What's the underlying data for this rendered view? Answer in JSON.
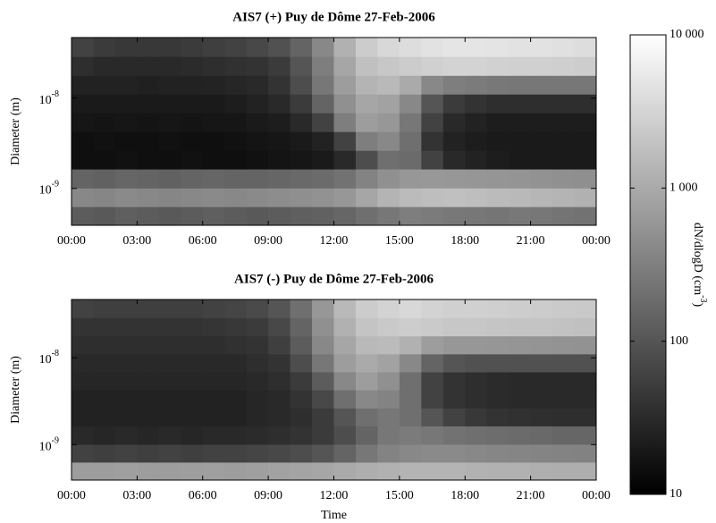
{
  "chart_data": [
    {
      "type": "heatmap",
      "title": "AIS7 (+) Puy de Dôme 27-Feb-2006",
      "ylabel": "Diameter (m)",
      "xlim": [
        0,
        24
      ],
      "xticks": [
        {
          "value": 0,
          "label": "00:00"
        },
        {
          "value": 3,
          "label": "03:00"
        },
        {
          "value": 6,
          "label": "06:00"
        },
        {
          "value": 9,
          "label": "09:00"
        },
        {
          "value": 12,
          "label": "12:00"
        },
        {
          "value": 15,
          "label": "15:00"
        },
        {
          "value": 18,
          "label": "18:00"
        },
        {
          "value": 21,
          "label": "21:00"
        },
        {
          "value": 24,
          "label": "00:00"
        }
      ],
      "ylim": [
        3.9e-10,
        4.7e-08
      ],
      "log_y": true,
      "yticks": [
        {
          "value": 1e-09,
          "label": "10",
          "exponent": "-9"
        },
        {
          "value": 1e-08,
          "label": "10",
          "exponent": "-8"
        }
      ],
      "x": [
        0,
        1,
        2,
        3,
        4,
        5,
        6,
        7,
        8,
        9,
        10,
        11,
        12,
        13,
        14,
        15,
        16,
        17,
        18,
        19,
        20,
        21,
        22,
        23
      ],
      "y_bins": [
        3.9e-10,
        6.28e-10,
        1.01e-09,
        1.64e-09,
        2.64e-09,
        4.27e-09,
        6.89e-09,
        1.11e-08,
        1.79e-08,
        2.9e-08,
        4.7e-08
      ],
      "values": [
        [
          120,
          110,
          130,
          120,
          110,
          120,
          130,
          120,
          110,
          120,
          130,
          140,
          160,
          200,
          250,
          300,
          280,
          260,
          250,
          240,
          260,
          250,
          230,
          220
        ],
        [
          400,
          380,
          420,
          400,
          380,
          400,
          420,
          400,
          420,
          450,
          480,
          520,
          600,
          900,
          1300,
          1600,
          1700,
          1800,
          1700,
          1600,
          1500,
          1400,
          1300,
          1200
        ],
        [
          150,
          140,
          160,
          150,
          140,
          150,
          160,
          150,
          150,
          160,
          170,
          180,
          220,
          350,
          500,
          600,
          620,
          600,
          580,
          560,
          550,
          520,
          500,
          480
        ],
        [
          15,
          15,
          16,
          15,
          15,
          16,
          15,
          15,
          16,
          17,
          18,
          20,
          30,
          80,
          200,
          180,
          60,
          30,
          25,
          22,
          20,
          20,
          20,
          20
        ],
        [
          15,
          16,
          15,
          15,
          16,
          15,
          15,
          16,
          17,
          18,
          20,
          25,
          60,
          300,
          400,
          200,
          40,
          25,
          22,
          20,
          20,
          20,
          20,
          20
        ],
        [
          18,
          17,
          18,
          17,
          18,
          17,
          18,
          18,
          20,
          22,
          30,
          60,
          300,
          700,
          600,
          250,
          60,
          30,
          25,
          22,
          22,
          22,
          22,
          22
        ],
        [
          20,
          20,
          20,
          20,
          20,
          20,
          20,
          22,
          25,
          30,
          50,
          150,
          500,
          900,
          800,
          400,
          100,
          50,
          40,
          35,
          35,
          35,
          35,
          35
        ],
        [
          25,
          25,
          25,
          24,
          25,
          25,
          26,
          28,
          30,
          40,
          80,
          250,
          700,
          1300,
          1500,
          1000,
          400,
          300,
          280,
          260,
          250,
          250,
          250,
          250
        ],
        [
          35,
          30,
          30,
          30,
          30,
          32,
          35,
          38,
          40,
          50,
          100,
          300,
          900,
          1800,
          2200,
          2500,
          2800,
          3000,
          3000,
          2900,
          2800,
          2800,
          2700,
          2600
        ],
        [
          60,
          50,
          45,
          45,
          45,
          50,
          55,
          60,
          70,
          90,
          150,
          400,
          1200,
          2500,
          3500,
          4000,
          4500,
          5000,
          5000,
          4800,
          4600,
          4500,
          4300,
          4000
        ]
      ]
    },
    {
      "type": "heatmap",
      "title": "AIS7 (-) Puy de Dôme 27-Feb-2006",
      "ylabel": "Diameter (m)",
      "xlabel": "Time",
      "xlim": [
        0,
        24
      ],
      "xticks": [
        {
          "value": 0,
          "label": "00:00"
        },
        {
          "value": 3,
          "label": "03:00"
        },
        {
          "value": 6,
          "label": "06:00"
        },
        {
          "value": 9,
          "label": "09:00"
        },
        {
          "value": 12,
          "label": "12:00"
        },
        {
          "value": 15,
          "label": "15:00"
        },
        {
          "value": 18,
          "label": "18:00"
        },
        {
          "value": 21,
          "label": "21:00"
        },
        {
          "value": 24,
          "label": "00:00"
        }
      ],
      "ylim": [
        3.9e-10,
        4.7e-08
      ],
      "log_y": true,
      "yticks": [
        {
          "value": 1e-09,
          "label": "10",
          "exponent": "-9"
        },
        {
          "value": 1e-08,
          "label": "10",
          "exponent": "-8"
        }
      ],
      "x": [
        0,
        1,
        2,
        3,
        4,
        5,
        6,
        7,
        8,
        9,
        10,
        11,
        12,
        13,
        14,
        15,
        16,
        17,
        18,
        19,
        20,
        21,
        22,
        23
      ],
      "y_bins": [
        3.9e-10,
        6.28e-10,
        1.01e-09,
        1.64e-09,
        2.64e-09,
        4.27e-09,
        6.89e-09,
        1.11e-08,
        1.79e-08,
        2.9e-08,
        4.7e-08
      ],
      "values": [
        [
          700,
          700,
          750,
          700,
          700,
          720,
          750,
          700,
          750,
          800,
          850,
          900,
          1000,
          1100,
          1200,
          1300,
          1300,
          1300,
          1250,
          1200,
          1200,
          1150,
          1100,
          1100
        ],
        [
          60,
          55,
          60,
          55,
          60,
          55,
          60,
          60,
          65,
          70,
          80,
          100,
          150,
          250,
          350,
          400,
          420,
          420,
          400,
          380,
          370,
          360,
          350,
          340
        ],
        [
          30,
          28,
          30,
          28,
          30,
          28,
          30,
          30,
          32,
          35,
          40,
          50,
          80,
          150,
          250,
          280,
          250,
          220,
          200,
          190,
          180,
          170,
          160,
          160
        ],
        [
          25,
          25,
          25,
          25,
          25,
          25,
          25,
          25,
          28,
          30,
          35,
          50,
          100,
          200,
          250,
          200,
          100,
          60,
          45,
          40,
          38,
          36,
          35,
          35
        ],
        [
          25,
          25,
          25,
          25,
          25,
          25,
          25,
          25,
          28,
          30,
          40,
          70,
          200,
          400,
          350,
          200,
          60,
          40,
          35,
          32,
          30,
          30,
          30,
          30
        ],
        [
          28,
          28,
          28,
          28,
          28,
          28,
          28,
          28,
          30,
          35,
          50,
          120,
          400,
          700,
          500,
          200,
          60,
          40,
          35,
          32,
          30,
          30,
          30,
          30
        ],
        [
          30,
          30,
          30,
          30,
          30,
          30,
          30,
          30,
          35,
          40,
          80,
          250,
          700,
          1000,
          800,
          400,
          150,
          100,
          90,
          90,
          90,
          90,
          90,
          90
        ],
        [
          35,
          35,
          35,
          35,
          35,
          35,
          35,
          38,
          40,
          55,
          120,
          400,
          900,
          1500,
          1600,
          1200,
          700,
          600,
          600,
          580,
          560,
          550,
          540,
          520
        ],
        [
          40,
          40,
          40,
          40,
          40,
          40,
          42,
          45,
          50,
          70,
          150,
          500,
          1200,
          2000,
          2300,
          2600,
          2400,
          2200,
          2200,
          2100,
          2000,
          2000,
          1900,
          1800
        ],
        [
          60,
          55,
          55,
          55,
          55,
          55,
          60,
          65,
          75,
          100,
          200,
          600,
          1500,
          2500,
          3000,
          3500,
          3000,
          2800,
          2800,
          2700,
          2600,
          2500,
          2400,
          2300
        ]
      ]
    }
  ],
  "colorbar": {
    "label": {
      "text": "dN/dlogD (cm",
      "exponent": "-3",
      "close": ")"
    },
    "lim": [
      10,
      10000
    ],
    "log": true,
    "ticks": [
      {
        "value": 10000,
        "label": "10 000"
      },
      {
        "value": 1000,
        "label": "1 000"
      },
      100,
      10
    ]
  }
}
